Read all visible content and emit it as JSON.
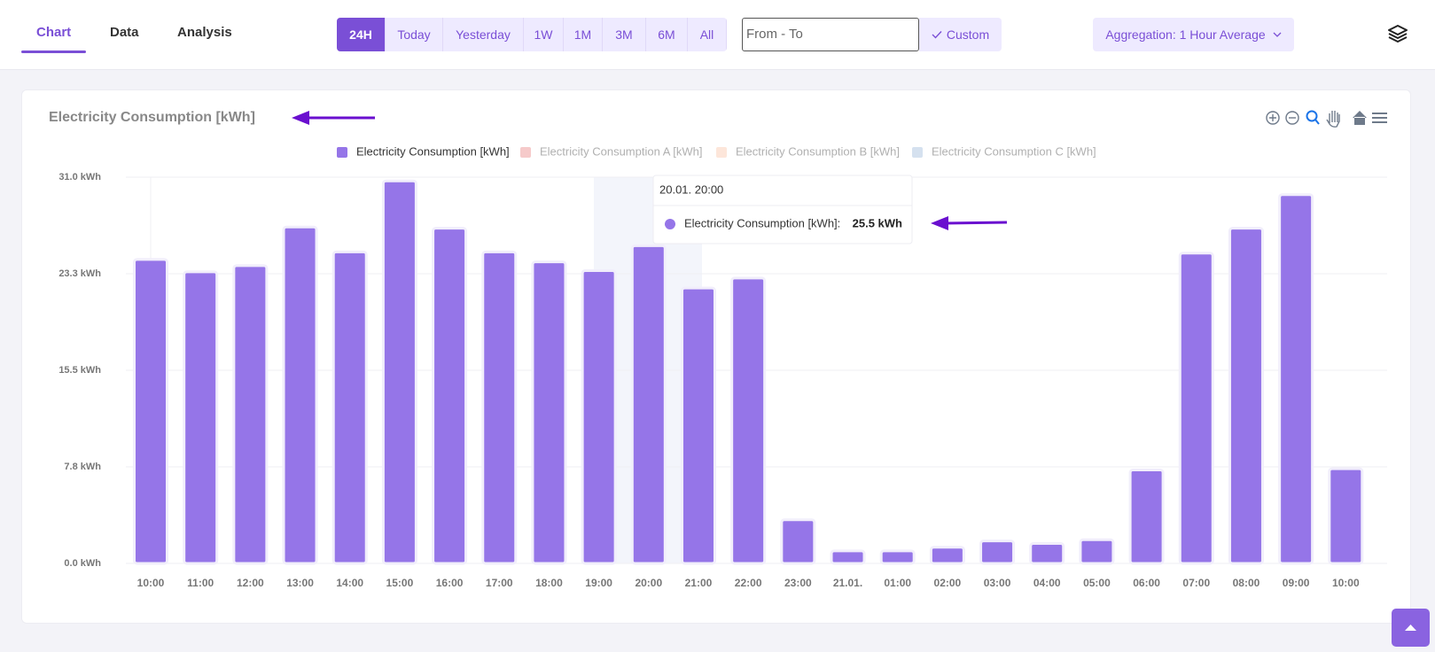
{
  "tabs": [
    "Chart",
    "Data",
    "Analysis"
  ],
  "active_tab": 0,
  "range_buttons": [
    "24H",
    "Today",
    "Yesterday",
    "1W",
    "1M",
    "3M",
    "6M",
    "All"
  ],
  "active_range": 0,
  "date_input_placeholder": "From - To",
  "custom_button": "Custom",
  "aggregation_button": "Aggregation: 1 Hour Average",
  "chart_data": {
    "type": "bar",
    "title": "Electricity Consumption [kWh]",
    "categories": [
      "10:00",
      "11:00",
      "12:00",
      "13:00",
      "14:00",
      "15:00",
      "16:00",
      "17:00",
      "18:00",
      "19:00",
      "20:00",
      "21:00",
      "22:00",
      "23:00",
      "21.01.",
      "01:00",
      "02:00",
      "03:00",
      "04:00",
      "05:00",
      "06:00",
      "07:00",
      "08:00",
      "09:00",
      "10:00"
    ],
    "series": [
      {
        "name": "Electricity Consumption [kWh]",
        "color": "#9575e8",
        "values": [
          24.4,
          23.4,
          23.9,
          27.0,
          25.0,
          30.7,
          26.9,
          25.0,
          24.2,
          23.5,
          25.5,
          22.1,
          22.9,
          3.5,
          1.0,
          1.0,
          1.3,
          1.8,
          1.6,
          1.9,
          7.5,
          24.9,
          26.9,
          29.6,
          7.6
        ]
      }
    ],
    "hidden_legend": [
      {
        "name": "Electricity Consumption A [kWh]",
        "color": "#f6caca"
      },
      {
        "name": "Electricity Consumption B [kWh]",
        "color": "#fde6da"
      },
      {
        "name": "Electricity Consumption C [kWh]",
        "color": "#d5e1ef"
      }
    ],
    "ylim": [
      0,
      31
    ],
    "yticks": [
      {
        "value": 0,
        "label": "0.0 kWh"
      },
      {
        "value": 7.75,
        "label": "7.8 kWh"
      },
      {
        "value": 15.5,
        "label": "15.5 kWh"
      },
      {
        "value": 23.25,
        "label": "23.3 kWh"
      },
      {
        "value": 31,
        "label": "31.0 kWh"
      }
    ],
    "grid": true,
    "tooltip": {
      "title": "20.01. 20:00",
      "series_label": "Electricity Consumption [kWh]:",
      "value_label": "25.5 kWh"
    }
  }
}
